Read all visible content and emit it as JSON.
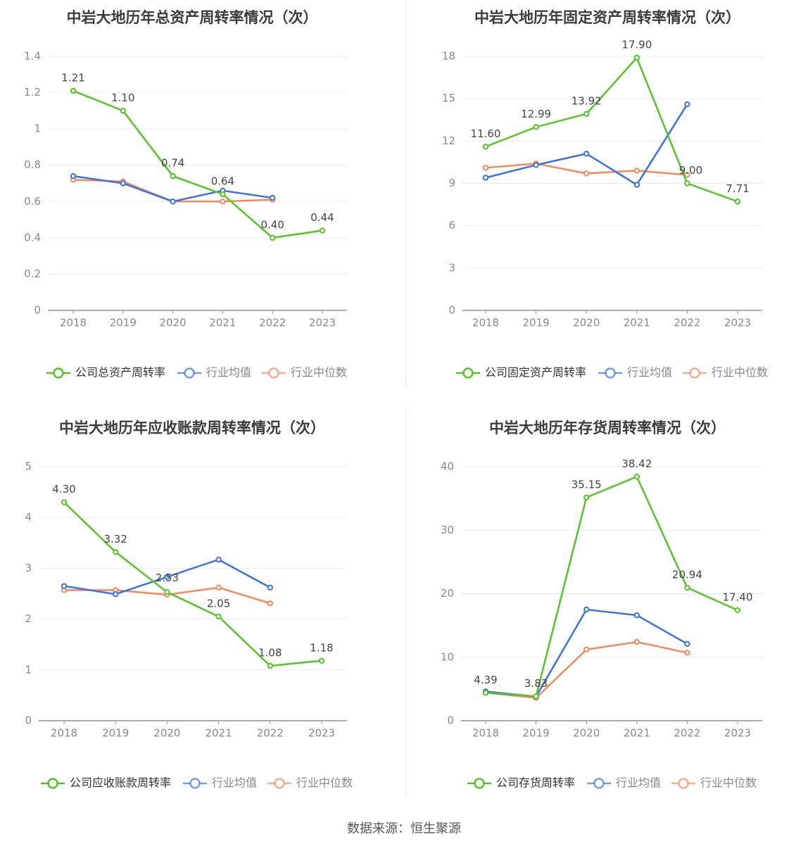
{
  "footer": "数据来源：恒生聚源",
  "colors": {
    "company": "#58c22c",
    "avg": "#3d72db",
    "median": "#f2895f",
    "grid": "#e8ebf3",
    "axis": "#8f93a0",
    "tick_text": "#8a8a8a",
    "label_text": "#444444",
    "title_text": "#3b3b3b"
  },
  "chart_data": [
    {
      "type": "line",
      "title": "中岩大地历年总资产周转率情况（次）",
      "categories": [
        "2018",
        "2019",
        "2020",
        "2021",
        "2022",
        "2023"
      ],
      "ylim": [
        0,
        1.4
      ],
      "yticks": [
        "0",
        "0.2",
        "0.4",
        "0.6",
        "0.8",
        "1",
        "1.2",
        "1.4"
      ],
      "series": [
        {
          "name": "公司总资产周转率",
          "key": "company",
          "values": [
            1.21,
            1.1,
            0.74,
            0.64,
            0.4,
            0.44
          ],
          "labels": [
            "1.21",
            "1.10",
            "0.74",
            "0.64",
            "0.40",
            "0.44"
          ]
        },
        {
          "name": "行业均值",
          "key": "avg",
          "values": [
            0.74,
            0.7,
            0.6,
            0.66,
            0.62,
            null
          ]
        },
        {
          "name": "行业中位数",
          "key": "median",
          "values": [
            0.72,
            0.71,
            0.6,
            0.6,
            0.61,
            null
          ]
        }
      ]
    },
    {
      "type": "line",
      "title": "中岩大地历年固定资产周转率情况（次）",
      "categories": [
        "2018",
        "2019",
        "2020",
        "2021",
        "2022",
        "2023"
      ],
      "ylim": [
        0,
        18
      ],
      "yticks": [
        "0",
        "3",
        "6",
        "9",
        "12",
        "15",
        "18"
      ],
      "series": [
        {
          "name": "公司固定资产周转率",
          "key": "company",
          "values": [
            11.6,
            12.99,
            13.92,
            17.9,
            9.0,
            7.71
          ],
          "labels": [
            "11.60",
            "12.99",
            "13.92",
            "17.90",
            "9.00",
            "7.71"
          ]
        },
        {
          "name": "行业均值",
          "key": "avg",
          "values": [
            9.4,
            10.3,
            11.1,
            8.9,
            14.6,
            null
          ]
        },
        {
          "name": "行业中位数",
          "key": "median",
          "values": [
            10.1,
            10.4,
            9.7,
            9.9,
            9.6,
            null
          ]
        }
      ]
    },
    {
      "type": "line",
      "title": "中岩大地历年应收账款周转率情况（次）",
      "categories": [
        "2018",
        "2019",
        "2020",
        "2021",
        "2022",
        "2023"
      ],
      "ylim": [
        0,
        5
      ],
      "yticks": [
        "0",
        "1",
        "2",
        "3",
        "4",
        "5"
      ],
      "series": [
        {
          "name": "公司应收账款周转率",
          "key": "company",
          "values": [
            4.3,
            3.32,
            2.53,
            2.05,
            1.08,
            1.18
          ],
          "labels": [
            "4.30",
            "3.32",
            "2.53",
            "2.05",
            "1.08",
            "1.18"
          ]
        },
        {
          "name": "行业均值",
          "key": "avg",
          "values": [
            2.65,
            2.49,
            2.83,
            3.17,
            2.62,
            null
          ]
        },
        {
          "name": "行业中位数",
          "key": "median",
          "values": [
            2.57,
            2.57,
            2.48,
            2.62,
            2.31,
            null
          ]
        }
      ]
    },
    {
      "type": "line",
      "title": "中岩大地历年存货周转率情况（次）",
      "categories": [
        "2018",
        "2019",
        "2020",
        "2021",
        "2022",
        "2023"
      ],
      "ylim": [
        0,
        40
      ],
      "yticks": [
        "0",
        "10",
        "20",
        "30",
        "40"
      ],
      "series": [
        {
          "name": "公司存货周转率",
          "key": "company",
          "values": [
            4.39,
            3.83,
            35.15,
            38.42,
            20.94,
            17.4
          ],
          "labels": [
            "4.39",
            "3.83",
            "35.15",
            "38.42",
            "20.94",
            "17.40"
          ]
        },
        {
          "name": "行业均值",
          "key": "avg",
          "values": [
            4.6,
            3.8,
            17.5,
            16.6,
            12.1,
            null
          ]
        },
        {
          "name": "行业中位数",
          "key": "median",
          "values": [
            4.4,
            3.6,
            11.2,
            12.4,
            10.7,
            null
          ]
        }
      ]
    }
  ]
}
